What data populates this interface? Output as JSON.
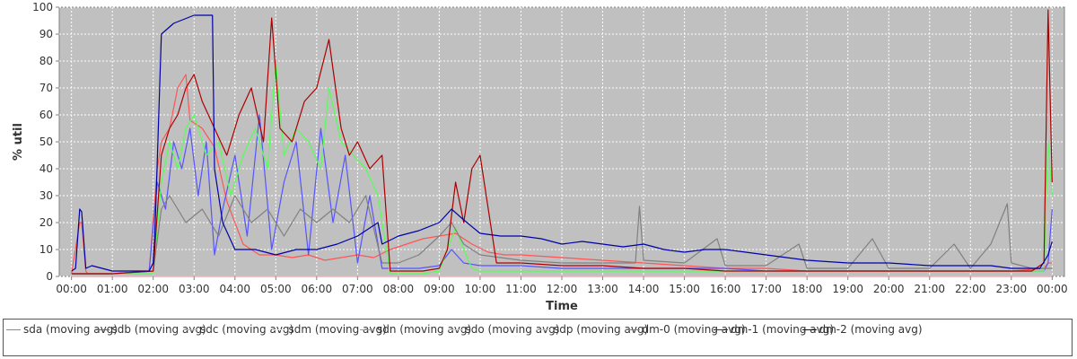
{
  "chart_data": {
    "type": "line",
    "title": "",
    "xlabel": "Time",
    "ylabel": "% util",
    "ylim": [
      0,
      100
    ],
    "xlim": [
      -0.3,
      24.3
    ],
    "yticks": [
      0,
      10,
      20,
      30,
      40,
      50,
      60,
      70,
      80,
      90,
      100
    ],
    "xticks": [
      {
        "x": 0,
        "label": "00:00"
      },
      {
        "x": 1,
        "label": "01:00"
      },
      {
        "x": 2,
        "label": "02:00"
      },
      {
        "x": 3,
        "label": "03:00"
      },
      {
        "x": 4,
        "label": "04:00"
      },
      {
        "x": 5,
        "label": "05:00"
      },
      {
        "x": 6,
        "label": "06:00"
      },
      {
        "x": 7,
        "label": "07:00"
      },
      {
        "x": 8,
        "label": "08:00"
      },
      {
        "x": 9,
        "label": "09:00"
      },
      {
        "x": 10,
        "label": "10:00"
      },
      {
        "x": 11,
        "label": "11:00"
      },
      {
        "x": 12,
        "label": "12:00"
      },
      {
        "x": 13,
        "label": "13:00"
      },
      {
        "x": 14,
        "label": "14:00"
      },
      {
        "x": 15,
        "label": "15:00"
      },
      {
        "x": 16,
        "label": "16:00"
      },
      {
        "x": 17,
        "label": "17:00"
      },
      {
        "x": 18,
        "label": "18:00"
      },
      {
        "x": 19,
        "label": "19:00"
      },
      {
        "x": 20,
        "label": "20:00"
      },
      {
        "x": 21,
        "label": "21:00"
      },
      {
        "x": 22,
        "label": "22:00"
      },
      {
        "x": 23,
        "label": "23:00"
      },
      {
        "x": 24,
        "label": "00:00"
      }
    ],
    "grid": true,
    "background": "#c0c0c0",
    "legend_position": "bottom",
    "series": [
      {
        "name": "sda (moving avg)",
        "color": "#ff5555",
        "x": [
          0,
          0.2,
          0.25,
          0.35,
          0.4,
          1,
          1.9,
          2.1,
          2.2,
          2.4,
          2.6,
          2.8,
          2.9,
          3.2,
          3.5,
          3.8,
          4.2,
          4.6,
          5,
          5.4,
          5.8,
          6.2,
          6.6,
          7,
          7.4,
          7.8,
          8.2,
          8.6,
          9,
          9.4,
          9.8,
          10.2,
          10.6,
          11,
          12,
          13,
          14,
          15,
          16,
          17,
          18,
          19,
          20,
          21,
          22,
          23,
          23.8,
          23.9,
          24
        ],
        "y": [
          1,
          20,
          20,
          2,
          1,
          1,
          2,
          40,
          50,
          55,
          70,
          75,
          58,
          55,
          48,
          28,
          12,
          8,
          8,
          7,
          8,
          6,
          7,
          8,
          7,
          10,
          12,
          14,
          15,
          16,
          12,
          9,
          8,
          8,
          7,
          6,
          5,
          4,
          3,
          3,
          2,
          2,
          2,
          2,
          2,
          2,
          3,
          5,
          5
        ]
      },
      {
        "name": "sdb (moving avg)",
        "color": "#5555ff",
        "x": [
          0,
          1,
          1.9,
          2.1,
          2.3,
          2.5,
          2.7,
          2.9,
          3.1,
          3.3,
          3.5,
          3.7,
          4,
          4.3,
          4.6,
          4.9,
          5.2,
          5.5,
          5.8,
          6.1,
          6.4,
          6.7,
          7,
          7.3,
          7.6,
          8,
          8.5,
          9,
          9.3,
          9.6,
          10,
          11,
          12,
          13,
          14,
          15,
          16,
          17,
          18,
          19,
          20,
          21,
          22,
          23,
          23.8,
          23.9,
          24
        ],
        "y": [
          1,
          1,
          2,
          35,
          25,
          50,
          40,
          55,
          30,
          50,
          8,
          25,
          45,
          15,
          60,
          10,
          35,
          50,
          8,
          55,
          20,
          45,
          5,
          30,
          3,
          3,
          3,
          4,
          10,
          5,
          4,
          4,
          3,
          3,
          3,
          3,
          3,
          2,
          2,
          2,
          2,
          2,
          2,
          2,
          2,
          5,
          25
        ]
      },
      {
        "name": "sdc (moving avg)",
        "color": "#55ff55",
        "x": [
          0,
          1,
          2,
          2.2,
          2.4,
          2.6,
          2.8,
          3,
          3.3,
          3.6,
          3.9,
          4.2,
          4.5,
          4.8,
          5,
          5.2,
          5.5,
          5.8,
          6.1,
          6.3,
          6.6,
          6.9,
          7.2,
          7.5,
          7.8,
          8.2,
          8.6,
          9,
          9.2,
          9.4,
          9.6,
          9.8,
          10,
          11,
          12,
          13,
          14,
          15,
          16,
          17,
          18,
          19,
          20,
          21,
          22,
          23,
          23.8,
          23.9,
          24
        ],
        "y": [
          1,
          1,
          1,
          35,
          50,
          40,
          55,
          60,
          45,
          50,
          30,
          45,
          55,
          40,
          80,
          45,
          55,
          50,
          40,
          70,
          50,
          45,
          40,
          30,
          1,
          1,
          1,
          2,
          10,
          18,
          10,
          3,
          2,
          2,
          2,
          2,
          2,
          2,
          2,
          2,
          2,
          2,
          2,
          2,
          2,
          2,
          2,
          50,
          30
        ]
      },
      {
        "name": "sdm (moving avg)",
        "color": "#ffff55",
        "x": [
          0,
          6,
          12,
          18,
          24
        ],
        "y": [
          0,
          0,
          0,
          0,
          0
        ]
      },
      {
        "name": "sdn (moving avg)",
        "color": "#ff55ff",
        "x": [
          0,
          6,
          12,
          18,
          24
        ],
        "y": [
          0,
          0,
          0,
          0,
          0
        ]
      },
      {
        "name": "sdo (moving avg)",
        "color": "#55ffff",
        "x": [
          0,
          6,
          12,
          18,
          24
        ],
        "y": [
          0,
          0,
          0,
          0,
          0
        ]
      },
      {
        "name": "sdp (moving avg)",
        "color": "#ffafaf",
        "x": [
          0,
          6,
          12,
          18,
          24
        ],
        "y": [
          0,
          0,
          0,
          0,
          0
        ]
      },
      {
        "name": "dm-0 (moving avg)",
        "color": "#808080",
        "x": [
          0,
          1,
          2,
          2.2,
          2.4,
          2.8,
          3.2,
          3.6,
          4,
          4.4,
          4.8,
          5.2,
          5.6,
          6,
          6.4,
          6.8,
          7.2,
          7.6,
          8,
          8.5,
          9,
          9.3,
          9.6,
          10,
          11,
          12,
          13,
          13.8,
          13.9,
          14,
          15,
          15.8,
          16,
          17,
          17.8,
          18,
          19,
          19.6,
          20,
          21,
          21.6,
          22,
          22.5,
          22.9,
          23,
          23.5,
          24
        ],
        "y": [
          1,
          1,
          2,
          25,
          30,
          20,
          25,
          15,
          30,
          20,
          25,
          15,
          25,
          20,
          25,
          20,
          30,
          5,
          5,
          8,
          15,
          20,
          12,
          8,
          6,
          5,
          5,
          5,
          26,
          6,
          5,
          14,
          4,
          4,
          12,
          3,
          3,
          14,
          3,
          3,
          12,
          3,
          12,
          27,
          5,
          3,
          3
        ]
      },
      {
        "name": "dm-1 (moving avg)",
        "color": "#aa0000",
        "x": [
          0,
          1,
          2,
          2.2,
          2.4,
          2.6,
          2.8,
          3,
          3.2,
          3.5,
          3.8,
          4.1,
          4.4,
          4.7,
          4.9,
          5.1,
          5.4,
          5.7,
          6,
          6.3,
          6.6,
          6.8,
          7,
          7.3,
          7.6,
          7.8,
          8.2,
          8.6,
          9,
          9.2,
          9.4,
          9.6,
          9.8,
          10,
          10.4,
          11,
          12,
          13,
          14,
          15,
          16,
          17,
          18,
          19,
          20,
          21,
          22,
          23,
          23.5,
          23.8,
          23.9,
          24
        ],
        "y": [
          1,
          1,
          2,
          45,
          55,
          60,
          70,
          75,
          65,
          55,
          45,
          60,
          70,
          50,
          96,
          55,
          50,
          65,
          70,
          88,
          55,
          45,
          50,
          40,
          45,
          2,
          2,
          2,
          3,
          10,
          35,
          20,
          40,
          45,
          5,
          5,
          4,
          4,
          3,
          3,
          2,
          2,
          2,
          2,
          2,
          2,
          2,
          2,
          2,
          5,
          99,
          35
        ]
      },
      {
        "name": "dm-2 (moving avg)",
        "color": "#0000aa",
        "x": [
          0,
          0.1,
          0.2,
          0.25,
          0.35,
          0.5,
          1,
          1.9,
          2,
          2.05,
          2.2,
          2.5,
          3,
          3.3,
          3.45,
          3.5,
          3.7,
          4,
          4.5,
          5,
          5.5,
          6,
          6.5,
          7,
          7.5,
          7.6,
          8,
          8.5,
          9,
          9.3,
          9.6,
          10,
          10.5,
          11,
          11.5,
          12,
          12.5,
          13,
          13.5,
          14,
          14.5,
          15,
          15.5,
          16,
          16.5,
          17,
          17.5,
          18,
          19,
          20,
          21,
          22,
          22.5,
          23,
          23.5,
          23.7,
          23.9,
          24
        ],
        "y": [
          2,
          3,
          25,
          24,
          3,
          4,
          2,
          2,
          5,
          20,
          90,
          94,
          97,
          97,
          97,
          40,
          20,
          10,
          10,
          8,
          10,
          10,
          12,
          15,
          20,
          12,
          15,
          17,
          20,
          25,
          21,
          16,
          15,
          15,
          14,
          12,
          13,
          12,
          11,
          12,
          10,
          9,
          10,
          10,
          9,
          8,
          7,
          6,
          5,
          5,
          4,
          4,
          4,
          3,
          3,
          3,
          8,
          13
        ]
      }
    ]
  }
}
